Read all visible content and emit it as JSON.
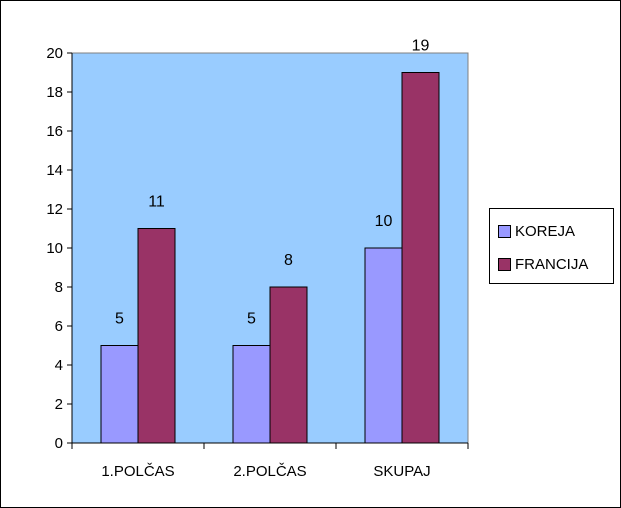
{
  "chart_data": {
    "type": "bar",
    "categories": [
      "1.POLČAS",
      "2.POLČAS",
      "SKUPAJ"
    ],
    "series": [
      {
        "name": "KOREJA",
        "values": [
          5,
          5,
          10
        ],
        "color": "#9999ff"
      },
      {
        "name": "FRANCIJA",
        "values": [
          11,
          8,
          19
        ],
        "color": "#993366"
      }
    ],
    "yticks": [
      0,
      2,
      4,
      6,
      8,
      10,
      12,
      14,
      16,
      18,
      20
    ],
    "ylim": [
      0,
      20
    ],
    "plot_background": "#99ccff",
    "grid": false,
    "legend_position": "right",
    "title": "",
    "xlabel": "",
    "ylabel": ""
  },
  "legend": {
    "items": [
      {
        "label": "KOREJA",
        "color": "#9999ff"
      },
      {
        "label": "FRANCIJA",
        "color": "#993366"
      }
    ]
  }
}
